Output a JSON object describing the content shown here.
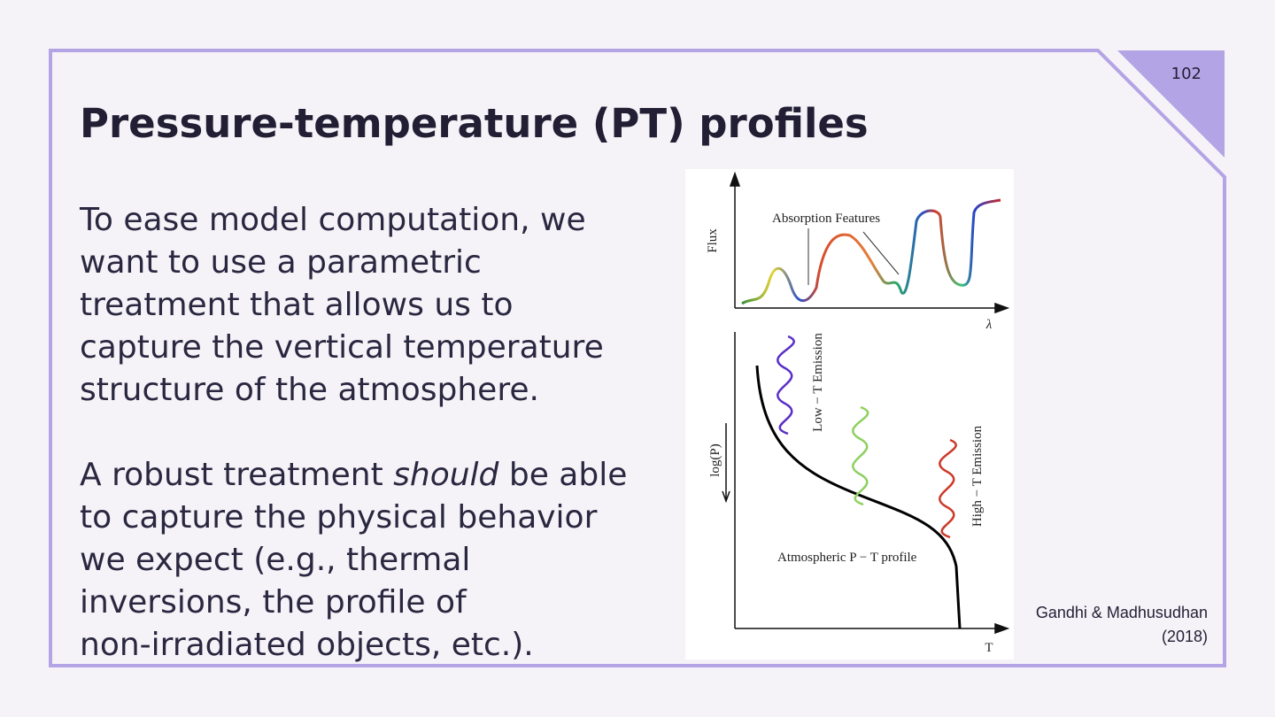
{
  "slide_number": "102",
  "title": "Pressure-temperature (PT) profiles",
  "paragraphs": [
    {
      "lines": [
        "To ease model computation, we",
        "want to use a parametric",
        "treatment that allows us to",
        "capture the vertical temperature",
        "structure of the atmosphere."
      ]
    },
    {
      "first_line": {
        "before": "A robust treatment ",
        "emphasis": "should",
        "after": " be able"
      },
      "lines": [
        "to capture the physical behavior",
        "we expect (e.g., thermal",
        "inversions, the profile of",
        "non-irradiated objects, etc.)."
      ]
    }
  ],
  "figure": {
    "flux_axis": "Flux",
    "wavelength_axis": "λ",
    "absorption_label": "Absorption Features",
    "pressure_axis": "log(P)",
    "temperature_axis": "T",
    "low_t_label": "Low − T Emission",
    "high_t_label": "High − T Emission",
    "profile_label": "Atmospheric P − T profile"
  },
  "citation": {
    "authors": "Gandhi & Madhusudhan",
    "year": "(2018)"
  }
}
